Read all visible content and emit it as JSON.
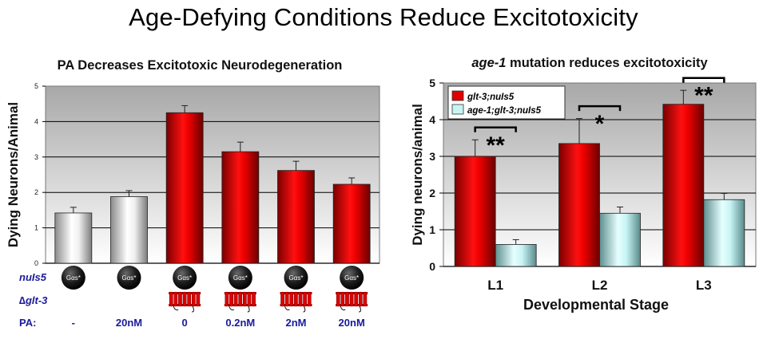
{
  "page_title": "Age-Defying Conditions Reduce Excitotoxicity",
  "colors": {
    "red": "#e00000",
    "white_bar": "#e8e8e8",
    "cyan": "#c8f4f4",
    "label_blue": "#1a1a9a"
  },
  "chart_data": [
    {
      "type": "bar",
      "title": "PA Decreases Excitotoxic Neurodegeneration",
      "xlabel": "",
      "ylabel": "Dying Neurons/Animal",
      "ylim": [
        0,
        5
      ],
      "yticks": [
        "0",
        "1",
        "2",
        "3",
        "4",
        "5"
      ],
      "grid": true,
      "values": [
        1.42,
        1.88,
        4.25,
        3.15,
        2.62,
        2.23
      ],
      "errors": [
        0.16,
        0.17,
        0.2,
        0.27,
        0.26,
        0.18
      ],
      "bar_colors": [
        "white",
        "white",
        "red",
        "red",
        "red",
        "red"
      ],
      "row_labels": {
        "nuls5": "nuIs5",
        "glt3": "∆glt-3",
        "pa": "PA:"
      },
      "gas_label": "Gαs*",
      "glt3_present": [
        false,
        false,
        true,
        true,
        true,
        true
      ],
      "pa_values": [
        "-",
        "20nM",
        "0",
        "0.2nM",
        "2nM",
        "20nM"
      ]
    },
    {
      "type": "bar",
      "title_italic": "age-1",
      "title_rest": " mutation reduces excitotoxicity",
      "xlabel": "Developmental Stage",
      "ylabel": "Dying neurons/animal",
      "ylim": [
        0,
        5
      ],
      "yticks": [
        "0",
        "1",
        "2",
        "3",
        "4",
        "5"
      ],
      "grid": true,
      "legend_position": "top-left",
      "categories": [
        "L1",
        "L2",
        "L3"
      ],
      "series": [
        {
          "name": "glt-3;nuIs5",
          "values": [
            3.0,
            3.35,
            4.42
          ],
          "errors": [
            0.45,
            0.68,
            0.38
          ]
        },
        {
          "name": "age-1;glt-3;nuIs5",
          "values": [
            0.6,
            1.45,
            1.82
          ],
          "errors": [
            0.13,
            0.17,
            0.17
          ]
        }
      ],
      "significance": [
        "**",
        "*",
        "**"
      ]
    }
  ]
}
